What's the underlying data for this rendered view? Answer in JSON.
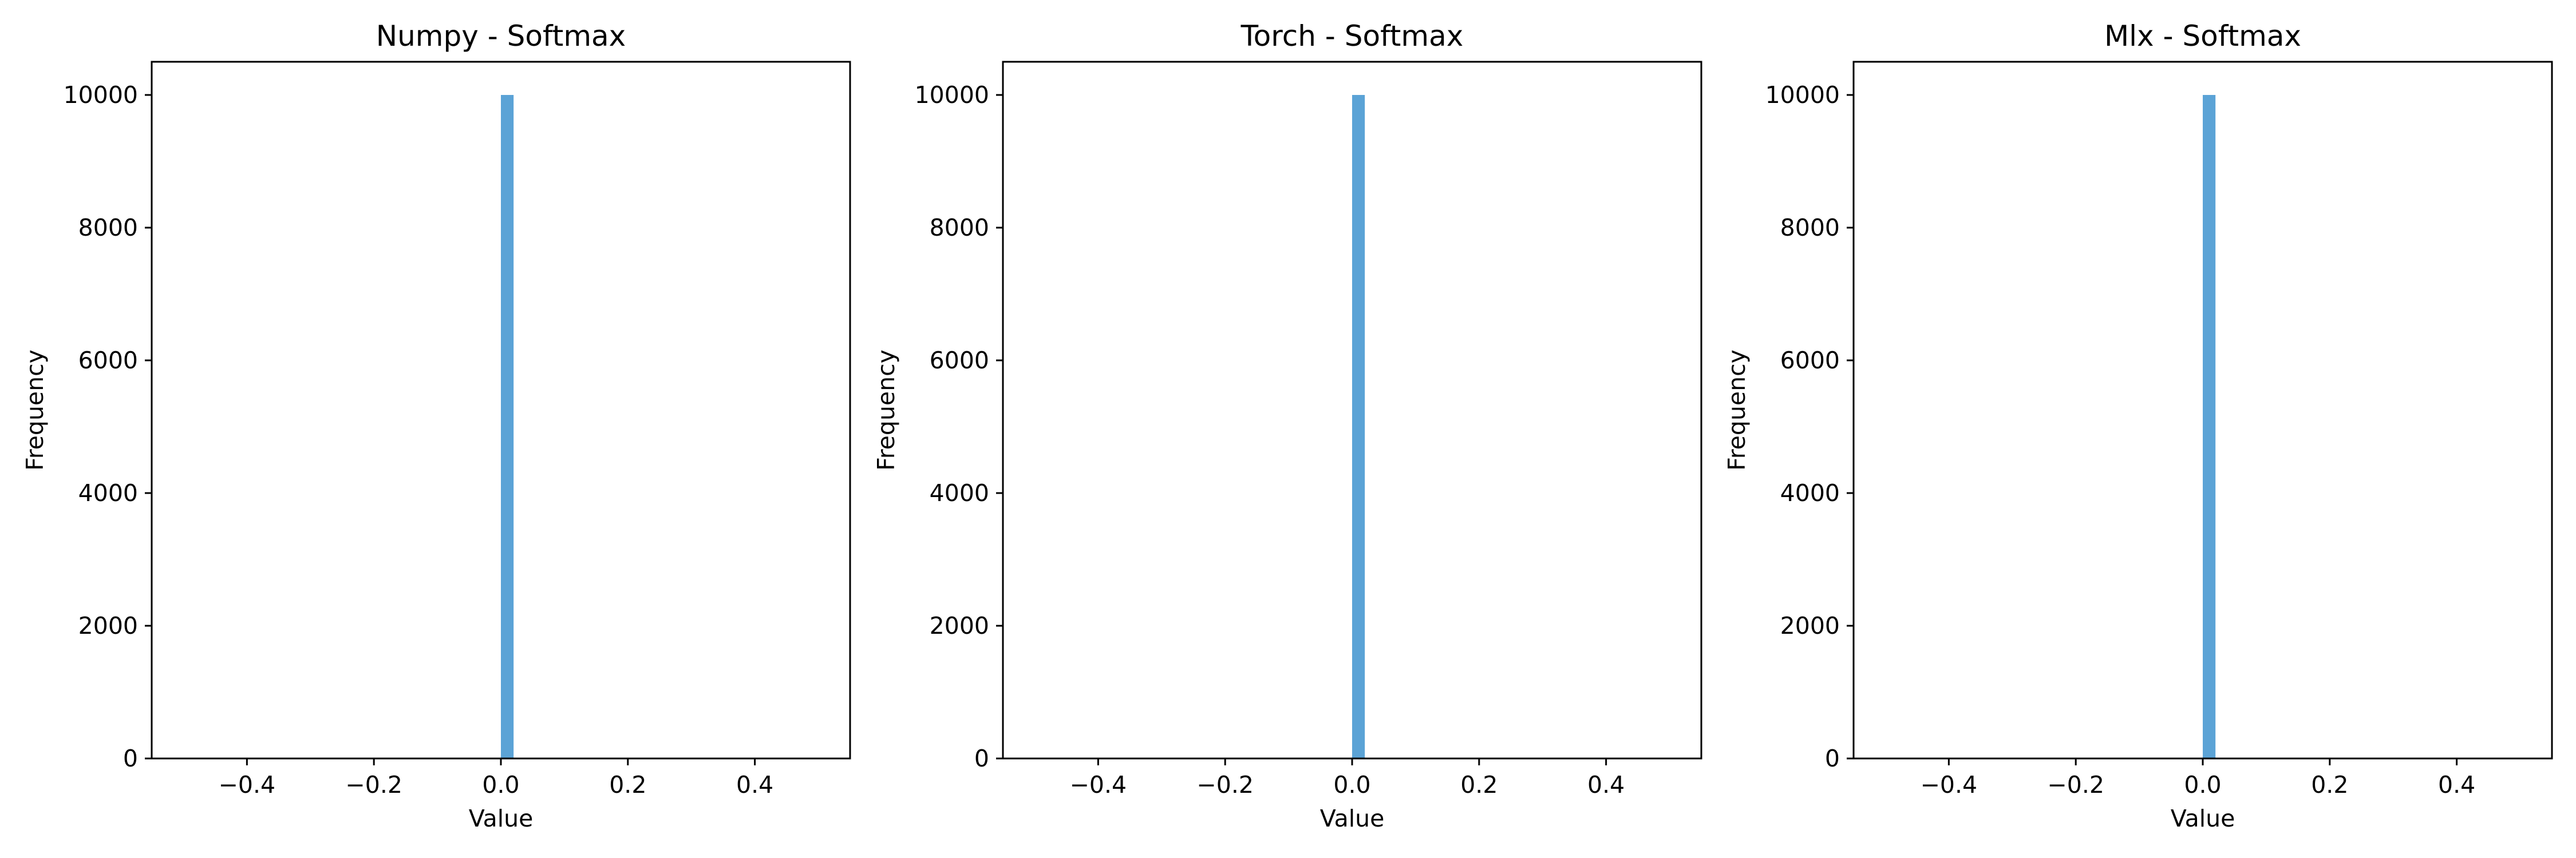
{
  "chart_data": [
    {
      "type": "bar",
      "title": "Numpy - Softmax",
      "xlabel": "Value",
      "ylabel": "Frequency",
      "xlim": [
        -0.55,
        0.55
      ],
      "ylim": [
        0,
        10500
      ],
      "xticks": [
        -0.4,
        -0.2,
        0.0,
        0.2,
        0.4
      ],
      "xtick_labels": [
        "−0.4",
        "−0.2",
        "0.0",
        "0.2",
        "0.4"
      ],
      "yticks": [
        0,
        2000,
        4000,
        6000,
        8000,
        10000
      ],
      "ytick_labels": [
        "0",
        "2000",
        "4000",
        "6000",
        "8000",
        "10000"
      ],
      "bars": [
        {
          "x0": 0.0,
          "x1": 0.02,
          "value": 10000
        }
      ],
      "color": "#5ba3d6"
    },
    {
      "type": "bar",
      "title": "Torch - Softmax",
      "xlabel": "Value",
      "ylabel": "Frequency",
      "xlim": [
        -0.55,
        0.55
      ],
      "ylim": [
        0,
        10500
      ],
      "xticks": [
        -0.4,
        -0.2,
        0.0,
        0.2,
        0.4
      ],
      "xtick_labels": [
        "−0.4",
        "−0.2",
        "0.0",
        "0.2",
        "0.4"
      ],
      "yticks": [
        0,
        2000,
        4000,
        6000,
        8000,
        10000
      ],
      "ytick_labels": [
        "0",
        "2000",
        "4000",
        "6000",
        "8000",
        "10000"
      ],
      "bars": [
        {
          "x0": 0.0,
          "x1": 0.02,
          "value": 10000
        }
      ],
      "color": "#5ba3d6"
    },
    {
      "type": "bar",
      "title": "Mlx - Softmax",
      "xlabel": "Value",
      "ylabel": "Frequency",
      "xlim": [
        -0.55,
        0.55
      ],
      "ylim": [
        0,
        10500
      ],
      "xticks": [
        -0.4,
        -0.2,
        0.0,
        0.2,
        0.4
      ],
      "xtick_labels": [
        "−0.4",
        "−0.2",
        "0.0",
        "0.2",
        "0.4"
      ],
      "yticks": [
        0,
        2000,
        4000,
        6000,
        8000,
        10000
      ],
      "ytick_labels": [
        "0",
        "2000",
        "4000",
        "6000",
        "8000",
        "10000"
      ],
      "bars": [
        {
          "x0": 0.0,
          "x1": 0.02,
          "value": 10000
        }
      ],
      "color": "#5ba3d6"
    }
  ]
}
